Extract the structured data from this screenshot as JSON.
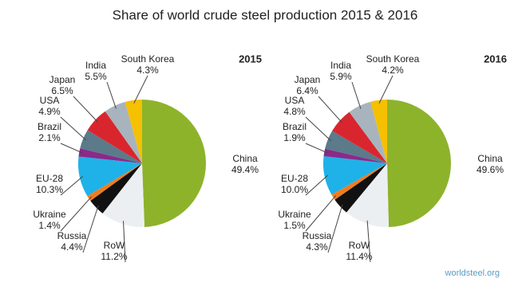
{
  "title": "Share of world crude steel production 2015 & 2016",
  "source": "worldsteel.org",
  "chart_data": [
    {
      "type": "pie",
      "title": "2015",
      "categories": [
        "China",
        "RoW",
        "Russia",
        "Ukraine",
        "EU-28",
        "Brazil",
        "USA",
        "Japan",
        "India",
        "South Korea"
      ],
      "values": [
        49.4,
        11.2,
        4.4,
        1.4,
        10.3,
        2.1,
        4.9,
        6.5,
        5.5,
        4.3
      ],
      "value_labels": [
        "49.4%",
        "11.2%",
        "4.4%",
        "1.4%",
        "10.3%",
        "2.1%",
        "4.9%",
        "6.5%",
        "5.5%",
        "4.3%"
      ],
      "colors": [
        "#8db32b",
        "#eceff2",
        "#111111",
        "#f07c1e",
        "#1fb2e8",
        "#8a2a8a",
        "#5b7a8a",
        "#d9262e",
        "#a8b4bd",
        "#f5c000"
      ]
    },
    {
      "type": "pie",
      "title": "2016",
      "categories": [
        "China",
        "RoW",
        "Russia",
        "Ukraine",
        "EU-28",
        "Brazil",
        "USA",
        "Japan",
        "India",
        "South Korea"
      ],
      "values": [
        49.6,
        11.4,
        4.3,
        1.5,
        10.0,
        1.9,
        4.8,
        6.4,
        5.9,
        4.2
      ],
      "value_labels": [
        "49.6%",
        "11.4%",
        "4.3%",
        "1.5%",
        "10.0%",
        "1.9%",
        "4.8%",
        "6.4%",
        "5.9%",
        "4.2%"
      ],
      "colors": [
        "#8db32b",
        "#eceff2",
        "#111111",
        "#f07c1e",
        "#1fb2e8",
        "#8a2a8a",
        "#5b7a8a",
        "#d9262e",
        "#a8b4bd",
        "#f5c000"
      ]
    }
  ]
}
